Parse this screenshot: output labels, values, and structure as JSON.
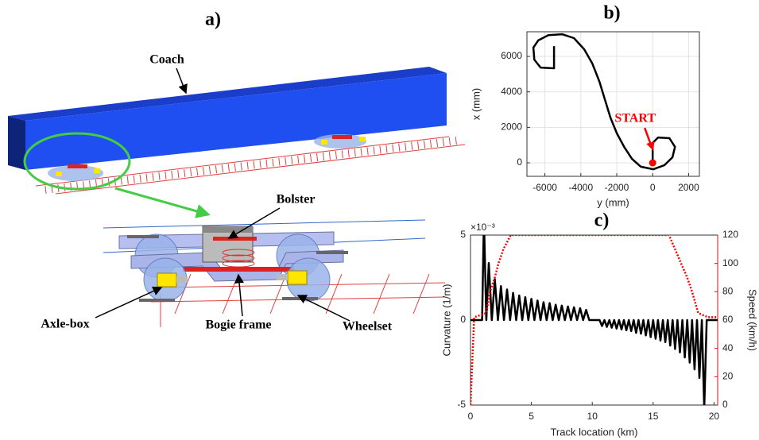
{
  "illustration": {
    "label": "a)",
    "callouts": {
      "coach": "Coach",
      "bolster": "Bolster",
      "axle_box": "Axle-box",
      "bogie_frame": "Bogie frame",
      "wheelset": "Wheelset"
    }
  },
  "chart_data": [
    {
      "type": "line",
      "title": "b)",
      "xlabel": "y (mm)",
      "ylabel": "x (mm)",
      "xlim": [
        -7000,
        2600
      ],
      "xticks": [
        -6000,
        -4000,
        -2000,
        0,
        2000
      ],
      "ylim": [
        -760,
        7390
      ],
      "yticks": [
        0,
        2000,
        4000,
        6000
      ],
      "grid": true,
      "series": [
        {
          "color": "#000000",
          "x": [
            0,
            0,
            300,
            930,
            1240,
            1100,
            660,
            40,
            -660,
            -1150,
            -1590,
            -1990,
            -2350,
            -2650,
            -2960,
            -3360,
            -3810,
            -4380,
            -5040,
            -5800,
            -6370,
            -6640,
            -6590,
            -6240,
            -5490,
            -5490
          ],
          "values": [
            0,
            1120,
            1430,
            1390,
            900,
            310,
            -130,
            -360,
            -220,
            220,
            900,
            1660,
            2550,
            3540,
            4570,
            5600,
            6400,
            7030,
            7250,
            7200,
            6900,
            6500,
            5820,
            5370,
            5330,
            6580
          ]
        }
      ],
      "annotations": [
        {
          "text": "START",
          "color": "#ff0000",
          "x": 0,
          "y": 0
        }
      ]
    },
    {
      "type": "line",
      "title": "c)",
      "xlabel": "Track location (km)",
      "ylabel": "Curvature (1/m)",
      "y_multiplier": "×10⁻³",
      "y2label": "Speed (km/h)",
      "xlim": [
        0,
        20.3
      ],
      "xticks": [
        0,
        5,
        10,
        15,
        20
      ],
      "ylim": [
        -5,
        5
      ],
      "yticks": [
        -5,
        0,
        5
      ],
      "y2lim": [
        0,
        120
      ],
      "y2ticks": [
        0,
        20,
        40,
        60,
        80,
        100,
        120
      ],
      "grid": false,
      "series": [
        {
          "color": "#000000",
          "x": [
            0,
            0.95,
            1.1,
            1.3,
            1.5,
            1.75,
            2.0,
            2.25,
            2.5,
            2.75,
            3.0,
            3.25,
            3.5,
            3.75,
            4.0,
            4.25,
            4.5,
            4.75,
            5.0,
            5.25,
            5.5,
            5.75,
            6.0,
            6.25,
            6.5,
            6.75,
            7.0,
            7.25,
            7.5,
            7.75,
            8.0,
            8.25,
            8.5,
            8.75,
            9.0,
            9.25,
            9.5,
            9.75,
            10.6,
            10.8,
            11.0,
            11.2,
            11.4,
            11.6,
            11.8,
            12.0,
            12.2,
            12.4,
            12.6,
            12.8,
            13.0,
            13.2,
            13.4,
            13.6,
            13.8,
            14.0,
            14.2,
            14.4,
            14.6,
            14.8,
            15.0,
            15.2,
            15.4,
            15.6,
            15.8,
            16.0,
            16.2,
            16.4,
            16.6,
            16.8,
            17.0,
            17.2,
            17.4,
            17.6,
            17.8,
            18.0,
            18.2,
            18.4,
            18.6,
            18.8,
            19.0,
            19.2,
            19.4,
            20.3
          ],
          "values": [
            0,
            0,
            6,
            0,
            3.35,
            0,
            2.4,
            0,
            2.0,
            0,
            1.8,
            0,
            1.6,
            0,
            1.45,
            0,
            1.35,
            0,
            1.25,
            0,
            1.15,
            0,
            1.05,
            0,
            1.0,
            0,
            0.9,
            0,
            0.85,
            0,
            0.8,
            0,
            0.75,
            0,
            0.7,
            0,
            0.6,
            0,
            0,
            -0.35,
            0,
            -0.4,
            0,
            -0.45,
            0,
            -0.5,
            0,
            -0.55,
            0,
            -0.6,
            0,
            -0.65,
            0,
            -0.75,
            0,
            -0.8,
            0,
            -0.9,
            0,
            -1.0,
            0,
            -1.1,
            0,
            -1.2,
            0,
            -1.3,
            0,
            -1.5,
            0,
            -1.7,
            0,
            -1.9,
            0,
            -2.2,
            0,
            -2.5,
            0,
            -2.9,
            0,
            -3.4,
            0,
            -5.2,
            0,
            0
          ]
        },
        {
          "color": "#ff0000",
          "axis": "y2",
          "style": "dotted",
          "x": [
            0,
            0.3,
            1.3,
            1.6,
            2.0,
            2.3,
            2.7,
            3.3,
            16.3,
            16.8,
            17.3,
            17.8,
            18.2,
            18.7,
            19.5,
            20.3
          ],
          "values": [
            0,
            62,
            65,
            80,
            90,
            100,
            110,
            120,
            120,
            110,
            100,
            90,
            80,
            65,
            62,
            62
          ]
        }
      ]
    }
  ]
}
